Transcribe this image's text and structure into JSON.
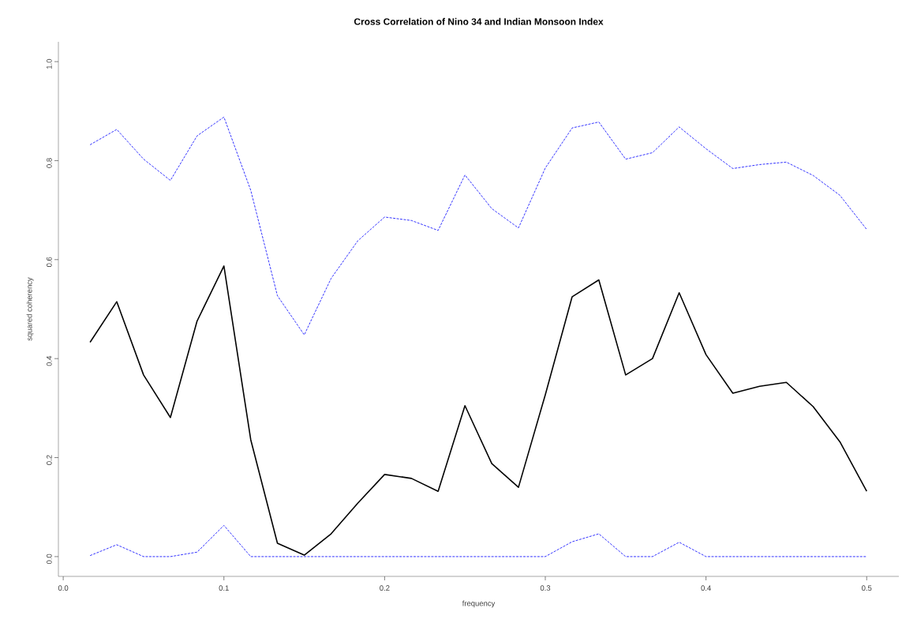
{
  "chart_data": {
    "type": "line",
    "title": "Cross Correlation of Nino 34 and Indian Monsoon Index",
    "xlabel": "frequency",
    "ylabel": "squared coherency",
    "x": [
      0.0167,
      0.0333,
      0.05,
      0.0667,
      0.0833,
      0.1,
      0.1167,
      0.1333,
      0.15,
      0.1667,
      0.1833,
      0.2,
      0.2167,
      0.2333,
      0.25,
      0.2667,
      0.2833,
      0.3,
      0.3167,
      0.3333,
      0.35,
      0.3667,
      0.3833,
      0.4,
      0.4167,
      0.4333,
      0.45,
      0.4667,
      0.4833,
      0.5
    ],
    "series": [
      {
        "color": "#000000",
        "line_style": "solid",
        "values": [
          0.433,
          0.515,
          0.367,
          0.281,
          0.476,
          0.587,
          0.236,
          0.027,
          0.003,
          0.046,
          0.108,
          0.166,
          0.158,
          0.132,
          0.305,
          0.188,
          0.14,
          0.327,
          0.525,
          0.559,
          0.367,
          0.4,
          0.533,
          0.408,
          0.33,
          0.344,
          0.352,
          0.303,
          0.232,
          0.132
        ]
      },
      {
        "color": "#0000ff",
        "line_style": "dashed",
        "values": [
          0.832,
          0.863,
          0.803,
          0.76,
          0.85,
          0.888,
          0.74,
          0.527,
          0.448,
          0.562,
          0.638,
          0.686,
          0.679,
          0.659,
          0.771,
          0.703,
          0.664,
          0.785,
          0.866,
          0.878,
          0.803,
          0.816,
          0.868,
          0.824,
          0.784,
          0.792,
          0.797,
          0.77,
          0.73,
          0.661
        ]
      },
      {
        "color": "#0000ff",
        "line_style": "dashed",
        "values": [
          0.002,
          0.024,
          0,
          0,
          0.009,
          0.063,
          0,
          0,
          0,
          0,
          0,
          0,
          0,
          0,
          0,
          0,
          0,
          0,
          0.03,
          0.046,
          0,
          0,
          0.029,
          0,
          0,
          0,
          0,
          0,
          0,
          0
        ]
      }
    ],
    "xlim": [
      -0.003,
      0.52
    ],
    "ylim": [
      -0.04,
      1.04
    ],
    "xticks": [
      {
        "value": 0,
        "label": "0.0"
      },
      0.1,
      0.2,
      0.3,
      0.4,
      0.5
    ],
    "yticks": [
      {
        "value": 0,
        "label": "0.0"
      },
      0.2,
      0.4,
      0.6,
      0.8,
      {
        "value": 1,
        "label": "1.0"
      }
    ],
    "grid": false,
    "marker": "none"
  }
}
